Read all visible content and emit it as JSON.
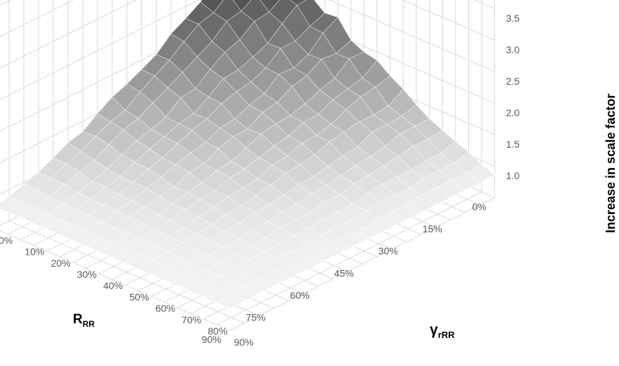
{
  "chart_data": {
    "type": "surface3d",
    "title": "",
    "zlabel": "Increase in scale factor",
    "xlabel_main": "R",
    "xlabel_sub": "RR",
    "ylabel_main": "γ",
    "ylabel_sub": "rRR",
    "x_ticks": [
      "0%",
      "15%",
      "30%",
      "45%",
      "60%",
      "75%",
      "90%"
    ],
    "y_ticks": [
      "0%",
      "10%",
      "20%",
      "30%",
      "40%",
      "50%",
      "60%",
      "70%",
      "80%",
      "90%"
    ],
    "z_ticks": [
      "1.0",
      "1.5",
      "2.0",
      "2.5",
      "3.0",
      "3.5"
    ],
    "zlim": [
      1.0,
      3.5
    ],
    "x_range": [
      0,
      90
    ],
    "y_range": [
      0,
      90
    ],
    "grid": true,
    "corner_values": {
      "R0_g0": 3.2,
      "R0_g90": 1.0,
      "R90_g0": 1.0,
      "R90_g90": 1.0,
      "peak": 3.3
    },
    "color_scale": [
      "#1a1a1a",
      "#f2f2f2"
    ]
  }
}
